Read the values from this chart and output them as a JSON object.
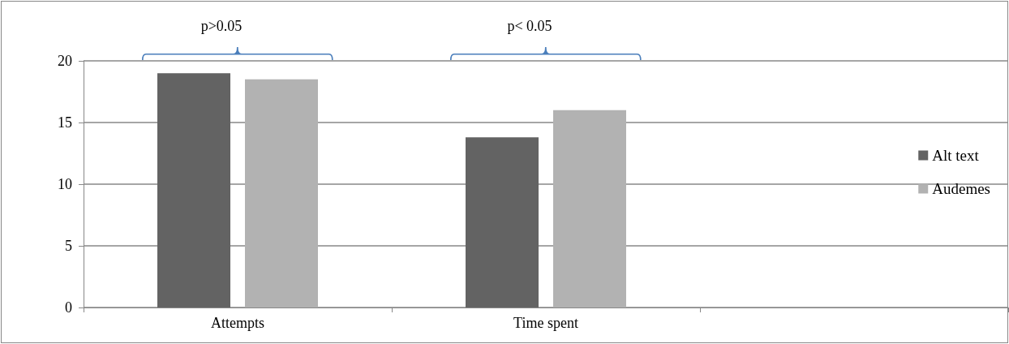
{
  "chart_data": {
    "type": "bar",
    "categories": [
      "Attempts",
      "Time spent",
      null
    ],
    "series": [
      {
        "name": "Alt text",
        "color": "#636363",
        "values": [
          19,
          13.8,
          null
        ]
      },
      {
        "name": "Audemes",
        "color": "#b2b2b2",
        "values": [
          18.5,
          16,
          null
        ]
      }
    ],
    "ylim": [
      0,
      20
    ],
    "yticks": [
      0,
      5,
      10,
      15,
      20
    ],
    "grid": "y",
    "legend": "right",
    "annotations": [
      "p>0.05",
      "p< 0.05"
    ]
  }
}
